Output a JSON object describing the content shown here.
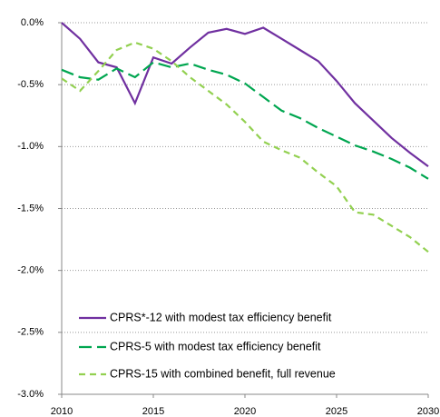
{
  "chart_data": {
    "type": "line",
    "x": [
      2010,
      2011,
      2012,
      2013,
      2014,
      2015,
      2016,
      2017,
      2018,
      2019,
      2020,
      2021,
      2022,
      2023,
      2024,
      2025,
      2026,
      2027,
      2028,
      2029,
      2030
    ],
    "xlim": [
      2010,
      2030
    ],
    "xticks": [
      2010,
      2015,
      2020,
      2025,
      2030
    ],
    "ylim": [
      -3.0,
      0.0
    ],
    "yticks": [
      {
        "value": 0,
        "label": "0.0%"
      },
      {
        "value": -0.5,
        "label": "-0.5%"
      },
      {
        "value": -1.0,
        "label": "-1.0%"
      },
      {
        "value": -1.5,
        "label": "-1.5%"
      },
      {
        "value": -2.0,
        "label": "-2.0%"
      },
      {
        "value": -2.5,
        "label": "-2.5%"
      },
      {
        "value": -3.0,
        "label": "-3.0%"
      }
    ],
    "grid": true,
    "legend": "lower-left",
    "series": [
      {
        "name": "CPRS*-12 with modest tax efficiency benefit",
        "color": "#7030a0",
        "dash": "solid",
        "values": [
          0.0,
          -0.13,
          -0.32,
          -0.36,
          -0.65,
          -0.28,
          -0.33,
          -0.2,
          -0.08,
          -0.05,
          -0.09,
          -0.04,
          -0.13,
          -0.22,
          -0.31,
          -0.47,
          -0.65,
          -0.79,
          -0.93,
          -1.05,
          -1.16
        ]
      },
      {
        "name": "CPRS-5 with modest tax efficiency benefit",
        "color": "#00a650",
        "dash": "long",
        "values": [
          -0.38,
          -0.44,
          -0.46,
          -0.37,
          -0.44,
          -0.32,
          -0.36,
          -0.33,
          -0.38,
          -0.42,
          -0.49,
          -0.6,
          -0.71,
          -0.77,
          -0.85,
          -0.92,
          -0.99,
          -1.04,
          -1.1,
          -1.17,
          -1.26
        ]
      },
      {
        "name": "CPRS-15 with combined benefit, full revenue",
        "color": "#92d050",
        "dash": "short",
        "values": [
          -0.45,
          -0.55,
          -0.39,
          -0.22,
          -0.16,
          -0.21,
          -0.31,
          -0.44,
          -0.55,
          -0.66,
          -0.8,
          -0.96,
          -1.03,
          -1.09,
          -1.21,
          -1.32,
          -1.53,
          -1.55,
          -1.64,
          -1.73,
          -1.85
        ]
      }
    ]
  }
}
